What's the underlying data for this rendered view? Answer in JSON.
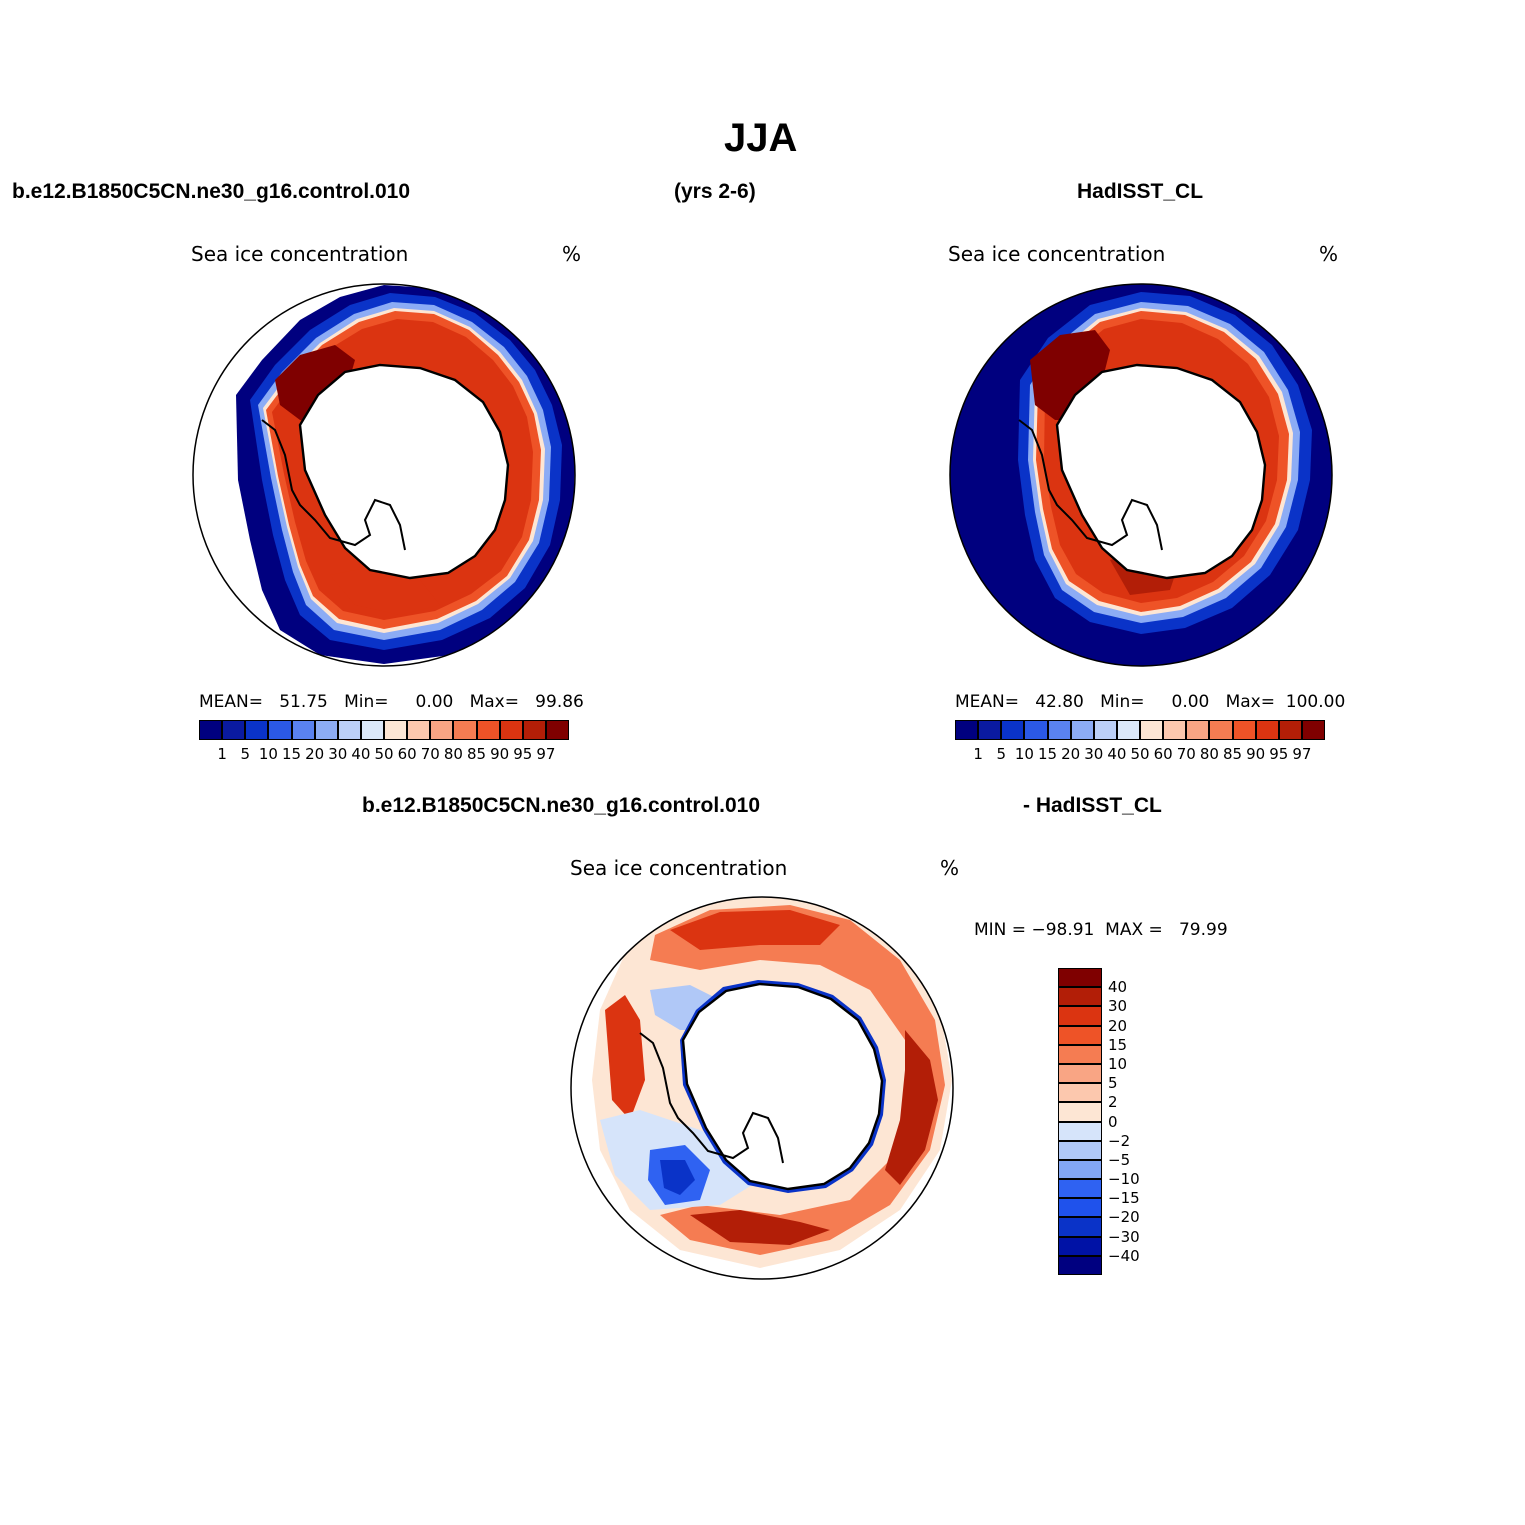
{
  "title": "JJA",
  "header": {
    "case": "b.e12.B1850C5CN.ne30_g16.control.010",
    "years": "(yrs 2-6)",
    "obs": "HadISST_CL",
    "diff_case": "b.e12.B1850C5CN.ne30_g16.control.010",
    "diff_obs": "- HadISST_CL"
  },
  "panels": [
    {
      "label": "Sea ice concentration",
      "units": "%",
      "stats": "MEAN=   51.75   Min=     0.00   Max=   99.86"
    },
    {
      "label": "Sea ice concentration",
      "units": "%",
      "stats": "MEAN=   42.80   Min=     0.00   Max=  100.00"
    },
    {
      "label": "Sea ice concentration",
      "units": "%",
      "stats": "MIN = −98.91  MAX =   79.99"
    }
  ],
  "colorbar_abs": {
    "colors": [
      "#00007f",
      "#0a1aa0",
      "#0a33c8",
      "#2b59e6",
      "#5a82f0",
      "#8cacf5",
      "#bcd0f7",
      "#dce9fa",
      "#fde6d4",
      "#fcc8ae",
      "#f9a584",
      "#f57c52",
      "#ee5327",
      "#db3411",
      "#b21e07",
      "#7f0000"
    ],
    "labels": [
      "1",
      "5",
      "10",
      "15",
      "20",
      "30",
      "40",
      "50",
      "60",
      "70",
      "80",
      "85",
      "90",
      "95",
      "97"
    ]
  },
  "colorbar_diff": {
    "colors": [
      "#000080",
      "#0012a6",
      "#0a33c8",
      "#1f52ec",
      "#2f62f2",
      "#82a6f5",
      "#b0c8f7",
      "#d6e4fa",
      "#fde6d4",
      "#fcc8ae",
      "#f9a584",
      "#f57c52",
      "#ee5327",
      "#db3411",
      "#b21e07",
      "#7f0000"
    ],
    "labels": [
      "40",
      "30",
      "20",
      "15",
      "10",
      "5",
      "2",
      "0",
      "−2",
      "−5",
      "−10",
      "−15",
      "−20",
      "−30",
      "−40"
    ]
  }
}
